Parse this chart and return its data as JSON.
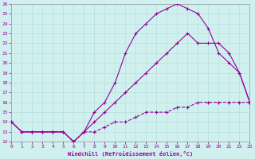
{
  "xlabel": "Windchill (Refroidissement éolien,°C)",
  "bg_color": "#cff0ee",
  "grid_color": "#b8e0dc",
  "line_color": "#990099",
  "xlim": [
    0,
    23
  ],
  "ylim": [
    12,
    26
  ],
  "xticks": [
    0,
    1,
    2,
    3,
    4,
    5,
    6,
    7,
    8,
    9,
    10,
    11,
    12,
    13,
    14,
    15,
    16,
    17,
    18,
    19,
    20,
    21,
    22,
    23
  ],
  "yticks": [
    12,
    13,
    14,
    15,
    16,
    17,
    18,
    19,
    20,
    21,
    22,
    23,
    24,
    25,
    26
  ],
  "line1_x": [
    0,
    1,
    2,
    3,
    4,
    5,
    6,
    7,
    8,
    9,
    10,
    11,
    12,
    13,
    14,
    15,
    16,
    17,
    18,
    19,
    20,
    21,
    22,
    23
  ],
  "line1_y": [
    14,
    13,
    13,
    13,
    13,
    13,
    12,
    13,
    15,
    16,
    18,
    21,
    23,
    24,
    25,
    25.5,
    26,
    25.5,
    25,
    23.5,
    21,
    20,
    19,
    16
  ],
  "line2_x": [
    0,
    1,
    2,
    3,
    4,
    5,
    6,
    7,
    8,
    9,
    10,
    11,
    12,
    13,
    14,
    15,
    16,
    17,
    18,
    19,
    20,
    21,
    22,
    23
  ],
  "line2_y": [
    14,
    13,
    13,
    13,
    13,
    13,
    12,
    13,
    14,
    15,
    16,
    17,
    18,
    19,
    20,
    21,
    22,
    23,
    22,
    22,
    22,
    21,
    19,
    16
  ],
  "line3_x": [
    0,
    1,
    2,
    3,
    4,
    5,
    6,
    7,
    8,
    9,
    10,
    11,
    12,
    13,
    14,
    15,
    16,
    17,
    18,
    19,
    20,
    21,
    22,
    23
  ],
  "line3_y": [
    14,
    13,
    13,
    13,
    13,
    13,
    12,
    13,
    13,
    13.5,
    14,
    14,
    14.5,
    15,
    15,
    15,
    15.5,
    15.5,
    16,
    16,
    16,
    16,
    16,
    16
  ]
}
